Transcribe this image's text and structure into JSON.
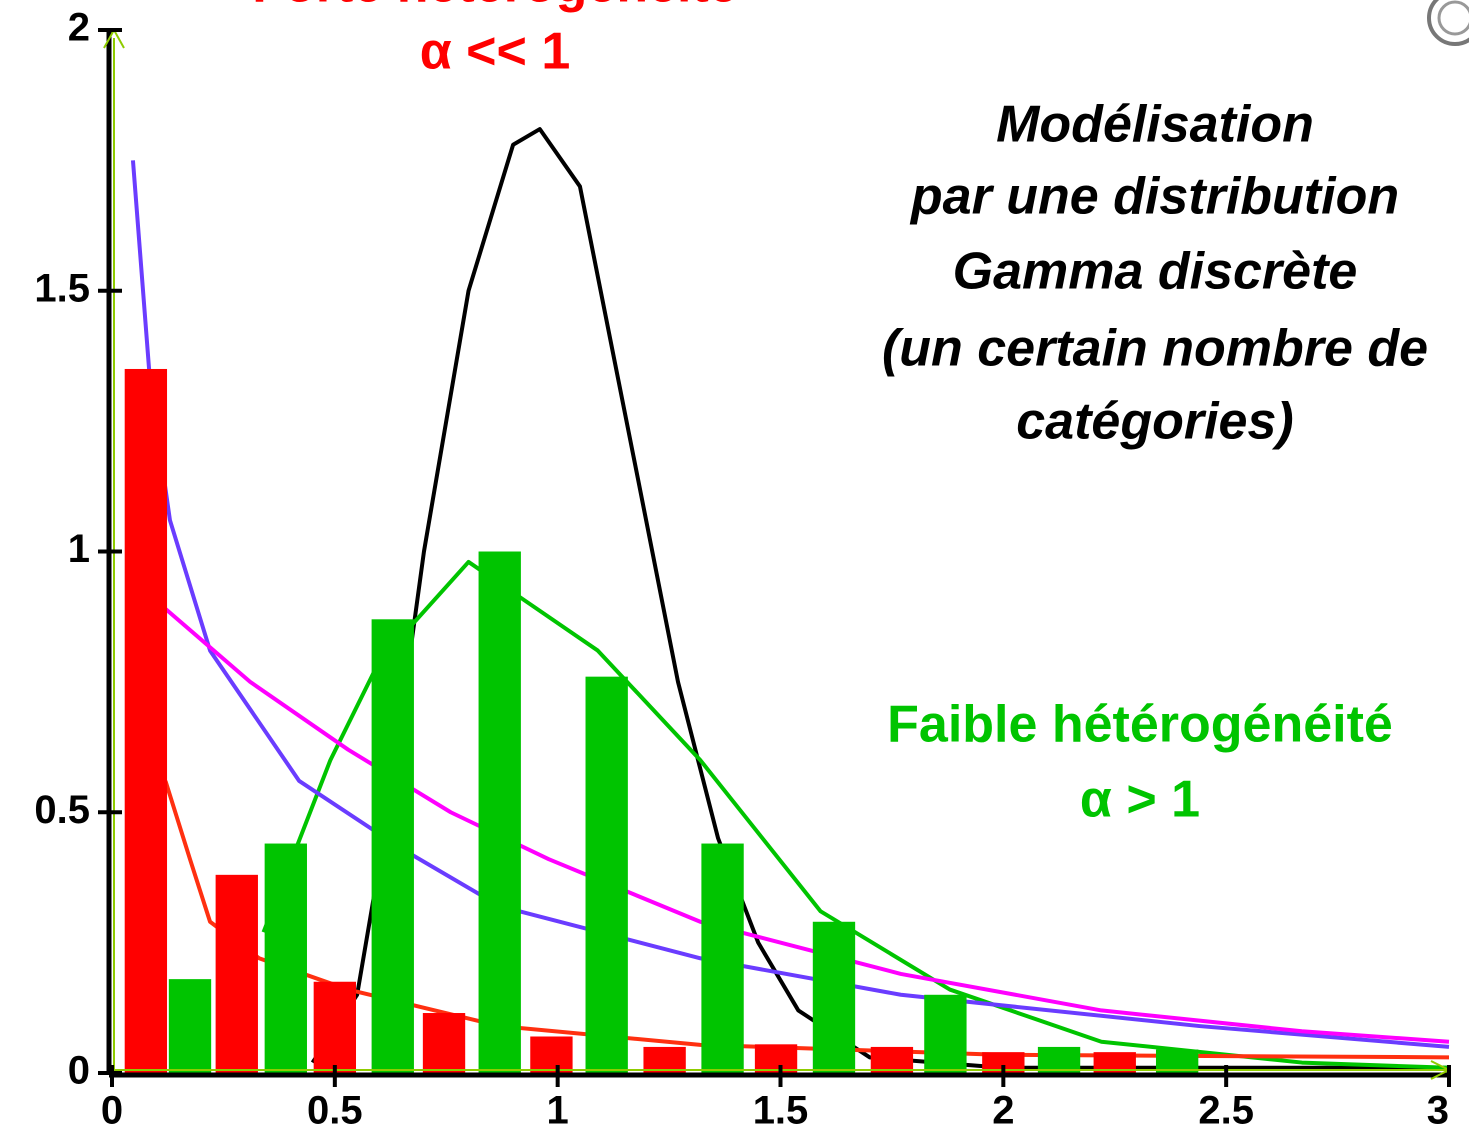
{
  "chart_data": {
    "type": "bar",
    "xlim": [
      0,
      3
    ],
    "ylim": [
      0,
      2
    ],
    "xticks": [
      0,
      0.5,
      1,
      1.5,
      2,
      2.5,
      3
    ],
    "yticks": [
      0,
      0.5,
      1,
      1.5,
      2
    ],
    "annotations": [
      {
        "lines": [
          "Forte hétérogénéité",
          "α << 1"
        ],
        "color": "#ff0000"
      },
      {
        "lines": [
          "Modélisation",
          "par une distribution",
          "Gamma discrète",
          "(un certain nombre de",
          "catégories)"
        ],
        "color": "#000000"
      },
      {
        "lines": [
          "Faible hétérogénéité",
          "α > 1"
        ],
        "color": "#00c400"
      }
    ],
    "series": [
      {
        "type": "line",
        "color": "#000000",
        "x": [
          0.45,
          0.55,
          0.62,
          0.7,
          0.8,
          0.9,
          0.96,
          1.05,
          1.18,
          1.27,
          1.36,
          1.45,
          1.54,
          1.7,
          2.0,
          3.0
        ],
        "values": [
          0.02,
          0.15,
          0.5,
          1.0,
          1.5,
          1.78,
          1.81,
          1.7,
          1.14,
          0.75,
          0.45,
          0.25,
          0.12,
          0.03,
          0.01,
          0.01
        ]
      },
      {
        "type": "line",
        "color": "#00c400",
        "x": [
          0.34,
          0.49,
          0.6,
          0.8,
          1.09,
          1.32,
          1.59,
          1.88,
          2.22,
          2.67,
          3.0
        ],
        "values": [
          0.27,
          0.6,
          0.79,
          0.98,
          0.81,
          0.6,
          0.31,
          0.16,
          0.06,
          0.02,
          0.01
        ]
      },
      {
        "type": "line",
        "color": "#6a3cff",
        "x": [
          0.047,
          0.085,
          0.13,
          0.22,
          0.42,
          0.65,
          0.87,
          1.32,
          1.77,
          2.44,
          3.0
        ],
        "values": [
          1.75,
          1.33,
          1.06,
          0.81,
          0.56,
          0.43,
          0.32,
          0.22,
          0.15,
          0.09,
          0.05
        ]
      },
      {
        "type": "line",
        "color": "#ff00ff",
        "x": [
          0.12,
          0.31,
          0.53,
          0.76,
          0.98,
          1.32,
          1.77,
          2.22,
          2.67,
          3.0
        ],
        "values": [
          0.89,
          0.75,
          0.62,
          0.5,
          0.41,
          0.29,
          0.19,
          0.12,
          0.08,
          0.06
        ]
      },
      {
        "type": "line",
        "color": "#ff3010",
        "x": [
          0.12,
          0.175,
          0.22,
          0.33,
          0.53,
          0.87,
          1.32,
          1.99,
          3.0
        ],
        "values": [
          0.56,
          0.41,
          0.29,
          0.22,
          0.16,
          0.09,
          0.054,
          0.035,
          0.03
        ]
      },
      {
        "type": "bar",
        "color": "#ff0000",
        "x": [
          0.076,
          0.28,
          0.5,
          0.745,
          0.986,
          1.24,
          1.49,
          1.75,
          2.0,
          2.25
        ],
        "values": [
          1.35,
          0.38,
          0.175,
          0.115,
          0.07,
          0.05,
          0.055,
          0.05,
          0.04,
          0.04
        ]
      },
      {
        "type": "bar",
        "color": "#00c400",
        "x": [
          0.175,
          0.39,
          0.63,
          0.87,
          1.11,
          1.37,
          1.62,
          1.87,
          2.125,
          2.39
        ],
        "values": [
          0.18,
          0.44,
          0.87,
          1.0,
          0.76,
          0.44,
          0.29,
          0.15,
          0.05,
          0.045
        ]
      }
    ]
  }
}
